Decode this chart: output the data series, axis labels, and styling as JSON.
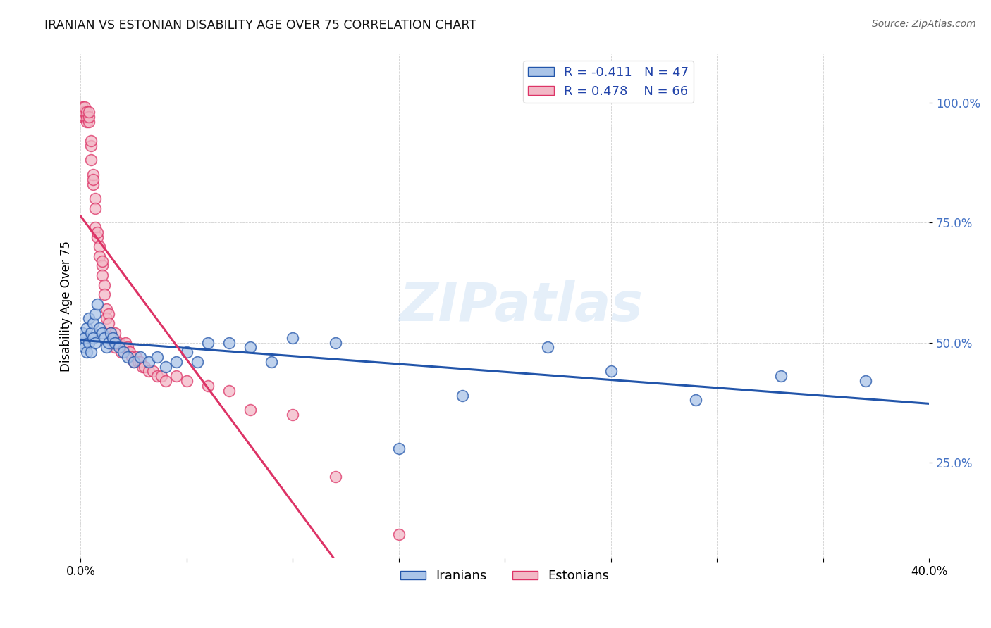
{
  "title": "IRANIAN VS ESTONIAN DISABILITY AGE OVER 75 CORRELATION CHART",
  "source": "Source: ZipAtlas.com",
  "ylabel": "Disability Age Over 75",
  "xlim": [
    0.0,
    0.4
  ],
  "ylim": [
    0.05,
    1.1
  ],
  "yticks": [
    0.25,
    0.5,
    0.75,
    1.0
  ],
  "ytick_labels": [
    "25.0%",
    "50.0%",
    "75.0%",
    "100.0%"
  ],
  "xticks": [
    0.0,
    0.05,
    0.1,
    0.15,
    0.2,
    0.25,
    0.3,
    0.35,
    0.4
  ],
  "xtick_labels": [
    "0.0%",
    "",
    "",
    "",
    "",
    "",
    "",
    "",
    "40.0%"
  ],
  "blue_R": -0.411,
  "blue_N": 47,
  "pink_R": 0.478,
  "pink_N": 66,
  "blue_color": "#aac4e8",
  "pink_color": "#f2b8c6",
  "blue_line_color": "#2255aa",
  "pink_line_color": "#dd3366",
  "watermark": "ZIPatlas",
  "iranians_x": [
    0.001,
    0.001,
    0.002,
    0.002,
    0.003,
    0.003,
    0.004,
    0.004,
    0.005,
    0.005,
    0.006,
    0.006,
    0.007,
    0.007,
    0.008,
    0.009,
    0.01,
    0.011,
    0.012,
    0.013,
    0.014,
    0.015,
    0.016,
    0.018,
    0.02,
    0.022,
    0.025,
    0.028,
    0.032,
    0.036,
    0.04,
    0.045,
    0.05,
    0.055,
    0.06,
    0.07,
    0.08,
    0.09,
    0.1,
    0.12,
    0.15,
    0.18,
    0.22,
    0.25,
    0.29,
    0.33,
    0.37
  ],
  "iranians_y": [
    0.5,
    0.52,
    0.49,
    0.51,
    0.53,
    0.48,
    0.55,
    0.5,
    0.52,
    0.48,
    0.54,
    0.51,
    0.56,
    0.5,
    0.58,
    0.53,
    0.52,
    0.51,
    0.49,
    0.5,
    0.52,
    0.51,
    0.5,
    0.49,
    0.48,
    0.47,
    0.46,
    0.47,
    0.46,
    0.47,
    0.45,
    0.46,
    0.48,
    0.46,
    0.5,
    0.5,
    0.49,
    0.46,
    0.51,
    0.5,
    0.28,
    0.39,
    0.49,
    0.44,
    0.38,
    0.43,
    0.42
  ],
  "estonians_x": [
    0.001,
    0.001,
    0.001,
    0.002,
    0.002,
    0.002,
    0.003,
    0.003,
    0.003,
    0.004,
    0.004,
    0.004,
    0.005,
    0.005,
    0.005,
    0.006,
    0.006,
    0.006,
    0.007,
    0.007,
    0.007,
    0.008,
    0.008,
    0.009,
    0.009,
    0.01,
    0.01,
    0.01,
    0.011,
    0.011,
    0.012,
    0.012,
    0.013,
    0.013,
    0.014,
    0.015,
    0.015,
    0.016,
    0.016,
    0.017,
    0.018,
    0.019,
    0.02,
    0.021,
    0.022,
    0.023,
    0.024,
    0.025,
    0.026,
    0.027,
    0.028,
    0.029,
    0.03,
    0.032,
    0.034,
    0.036,
    0.038,
    0.04,
    0.045,
    0.05,
    0.06,
    0.07,
    0.08,
    0.1,
    0.12,
    0.15
  ],
  "estonians_y": [
    0.97,
    0.98,
    0.99,
    0.97,
    0.98,
    0.99,
    0.96,
    0.97,
    0.98,
    0.96,
    0.97,
    0.98,
    0.91,
    0.92,
    0.88,
    0.83,
    0.85,
    0.84,
    0.8,
    0.78,
    0.74,
    0.72,
    0.73,
    0.7,
    0.68,
    0.66,
    0.67,
    0.64,
    0.62,
    0.6,
    0.57,
    0.55,
    0.56,
    0.54,
    0.52,
    0.51,
    0.5,
    0.49,
    0.52,
    0.5,
    0.5,
    0.48,
    0.49,
    0.5,
    0.49,
    0.48,
    0.47,
    0.46,
    0.47,
    0.46,
    0.46,
    0.45,
    0.45,
    0.44,
    0.44,
    0.43,
    0.43,
    0.42,
    0.43,
    0.42,
    0.41,
    0.4,
    0.36,
    0.35,
    0.22,
    0.1
  ]
}
